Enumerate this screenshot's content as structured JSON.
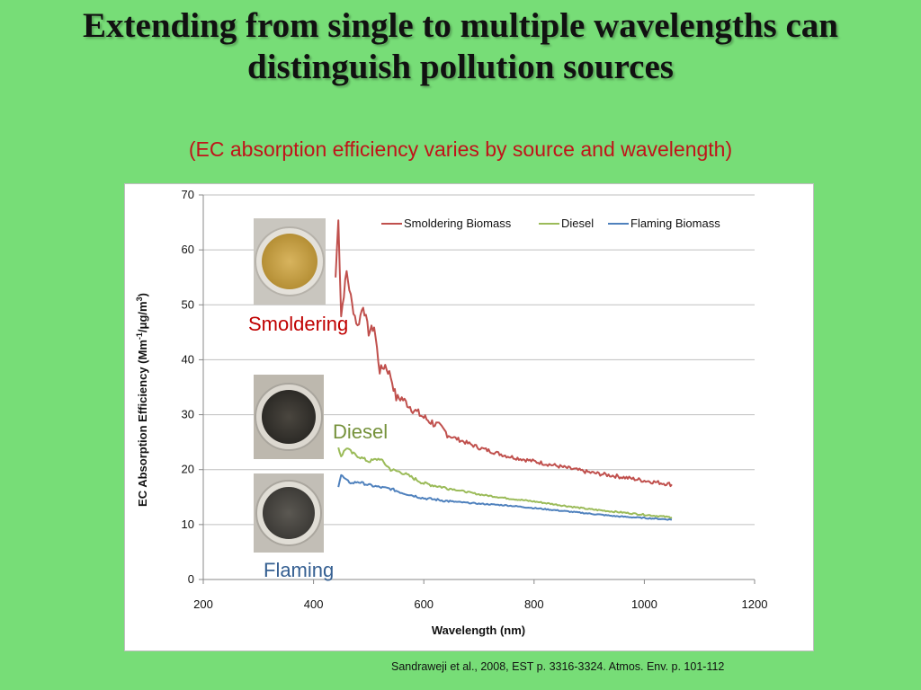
{
  "slide": {
    "title_line1": "Extending from single to multiple wavelengths can",
    "title_line2": "distinguish pollution sources",
    "subtitle": "(EC absorption efficiency varies by source and wavelength)",
    "citation": "Sandraweji et al., 2008, EST p. 3316-3324. Atmos. Env. p. 101-112"
  },
  "chart_data": {
    "type": "line",
    "xlabel": "Wavelength (nm)",
    "ylabel_main": "EC Absorption Efficiency (Mm",
    "ylabel_sup1": "-1",
    "ylabel_mid": "/μg/m",
    "ylabel_sup2": "3",
    "ylabel_end": ")",
    "xlim": [
      200,
      1200
    ],
    "ylim": [
      0,
      70
    ],
    "xticks": [
      200,
      400,
      600,
      800,
      1000,
      1200
    ],
    "yticks": [
      0,
      10,
      20,
      30,
      40,
      50,
      60,
      70
    ],
    "grid": "horizontal",
    "legend_position": "top-right",
    "series": [
      {
        "name": "Smoldering Biomass",
        "color": "#c0504d",
        "x": [
          440,
          445,
          450,
          460,
          470,
          480,
          490,
          500,
          510,
          520,
          530,
          540,
          550,
          560,
          580,
          600,
          625,
          650,
          700,
          750,
          800,
          850,
          900,
          950,
          1000,
          1050
        ],
        "y": [
          55,
          66,
          48,
          56,
          50,
          46,
          50,
          45,
          46,
          38,
          39,
          37,
          33,
          33,
          31,
          29.5,
          28,
          26,
          24,
          22.5,
          21.5,
          20.5,
          19.5,
          18.8,
          18,
          17.3
        ]
      },
      {
        "name": "Diesel",
        "color": "#9bbb59",
        "x": [
          445,
          450,
          460,
          470,
          480,
          500,
          520,
          540,
          560,
          600,
          650,
          700,
          750,
          800,
          850,
          900,
          950,
          1000,
          1050
        ],
        "y": [
          24,
          22.5,
          24,
          23,
          22.5,
          21.5,
          22,
          20,
          19.5,
          17.5,
          16.5,
          15.5,
          14.8,
          14.2,
          13.5,
          12.8,
          12.3,
          11.8,
          11.3
        ]
      },
      {
        "name": "Flaming Biomass",
        "color": "#4f81bd",
        "x": [
          445,
          450,
          460,
          470,
          480,
          500,
          520,
          540,
          560,
          600,
          650,
          700,
          750,
          800,
          850,
          900,
          950,
          1000,
          1050
        ],
        "y": [
          17,
          19,
          18,
          17.5,
          17.8,
          17.2,
          16.8,
          16.5,
          15.8,
          14.8,
          14.2,
          13.8,
          13.5,
          13,
          12.5,
          12,
          11.5,
          11.2,
          10.9
        ]
      }
    ],
    "annotations": {
      "smoldering": "Smoldering",
      "diesel": "Diesel",
      "flaming": "Flaming"
    }
  }
}
